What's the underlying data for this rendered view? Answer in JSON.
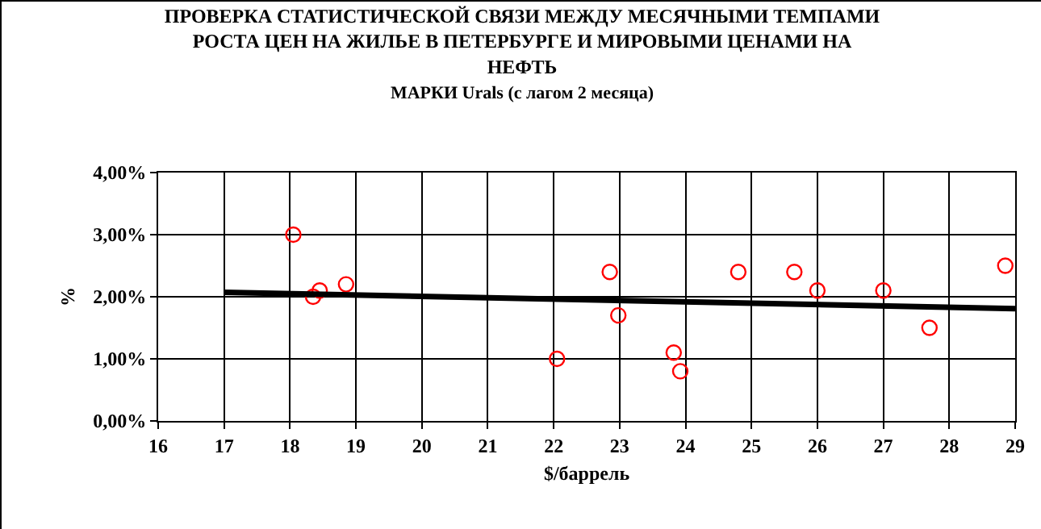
{
  "chart_data": {
    "type": "scatter",
    "title": "ПРОВЕРКА СТАТИСТИЧЕСКОЙ СВЯЗИ МЕЖДУ МЕСЯЧНЫМИ ТЕМПАМИ\nРОСТА ЦЕН НА ЖИЛЬЕ В ПЕТЕРБУРГЕ И МИРОВЫМИ ЦЕНАМИ НА\nНЕФТЬ",
    "subtitle": "МАРКИ Urals (с лагом 2 месяца)",
    "xlabel": "$/баррель",
    "ylabel": "%",
    "series": [
      {
        "color": "#ff0000",
        "marker": "circle",
        "x": [
          18.05,
          18.35,
          18.45,
          18.85,
          22.05,
          22.85,
          22.98,
          23.82,
          23.92,
          24.8,
          25.65,
          26.0,
          27.0,
          27.7,
          28.85
        ],
        "values": [
          3.0,
          2.0,
          2.1,
          2.2,
          1.0,
          2.4,
          1.7,
          1.1,
          0.8,
          2.4,
          2.4,
          2.1,
          2.1,
          1.5,
          2.5
        ]
      },
      {
        "type": "line",
        "color": "#000000",
        "marker": "none",
        "x": [
          17,
          29
        ],
        "values": [
          2.07,
          1.81
        ]
      }
    ],
    "xlim": [
      16,
      29
    ],
    "xticks": [
      16,
      17,
      18,
      19,
      20,
      21,
      22,
      23,
      24,
      25,
      26,
      27,
      28,
      29
    ],
    "ylim": [
      0,
      4
    ],
    "yticks": [
      {
        "value": 0,
        "label": "0,00%"
      },
      {
        "value": 1,
        "label": "1,00%"
      },
      {
        "value": 2,
        "label": "2,00%"
      },
      {
        "value": 3,
        "label": "3,00%"
      },
      {
        "value": 4,
        "label": "4,00%"
      }
    ],
    "grid": true
  }
}
